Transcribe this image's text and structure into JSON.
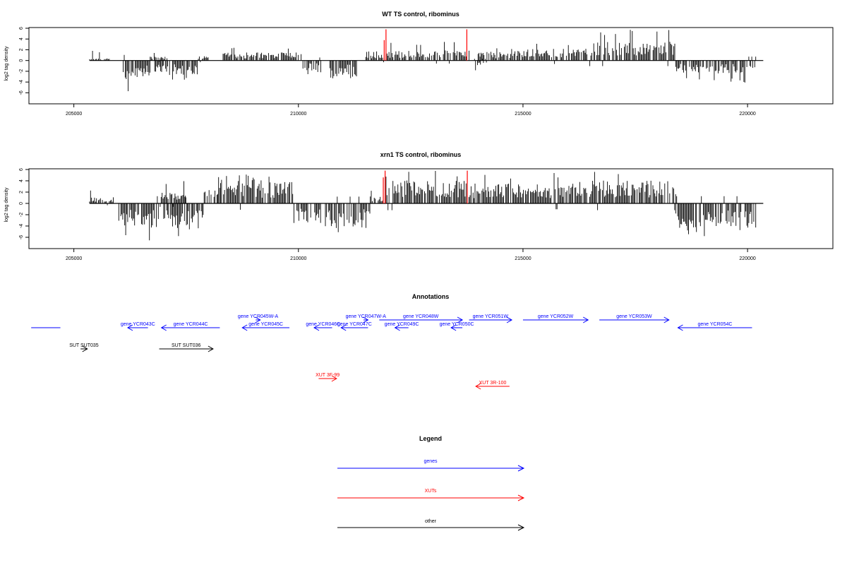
{
  "colors": {
    "black": "#000000",
    "blue": "#0000ff",
    "red": "#ff0000"
  },
  "chart_data": [
    {
      "type": "bar",
      "title": "WT TS control, ribominus",
      "ylabel": "log2 tag density",
      "xlim": [
        204000,
        221900
      ],
      "ylim": [
        -7,
        6
      ],
      "xticks": [
        205000,
        210000,
        215000,
        220000
      ],
      "yticks": [
        -6,
        -4,
        -2,
        0,
        2,
        4,
        6
      ],
      "x_range": [
        205350,
        220350
      ],
      "grid": false,
      "highlight_bars": [
        {
          "x": 211950,
          "y": 5.8,
          "color": "#ff0000"
        },
        {
          "x": 211910,
          "y": 3.8,
          "color": "#ff0000"
        },
        {
          "x": 213750,
          "y": 5.8,
          "color": "#ff0000"
        }
      ],
      "segments": [
        {
          "x": [
            205350,
            205800
          ],
          "level": 0.3,
          "max": 2.0
        },
        {
          "x": [
            206100,
            206700
          ],
          "level": -2.6,
          "max": -6.2
        },
        {
          "x": [
            206700,
            207100
          ],
          "level": 0.6,
          "max": 1.6
        },
        {
          "x": [
            206800,
            207750
          ],
          "level": -2.0,
          "max": -3.8
        },
        {
          "x": [
            207750,
            208000
          ],
          "level": 0.8,
          "max": 1.5
        },
        {
          "x": [
            208300,
            210100
          ],
          "level": 1.1,
          "max": 2.8
        },
        {
          "x": [
            210100,
            210500
          ],
          "level": -1.4,
          "max": -2.6
        },
        {
          "x": [
            210700,
            211300
          ],
          "level": -2.2,
          "max": -3.6
        },
        {
          "x": [
            211500,
            211900
          ],
          "level": 0.8,
          "max": 1.8
        },
        {
          "x": [
            211950,
            213800
          ],
          "level": 1.4,
          "max": 3.8
        },
        {
          "x": [
            213900,
            214200
          ],
          "level": -0.8,
          "max": -2.0
        },
        {
          "x": [
            214000,
            214800
          ],
          "level": 1.2,
          "max": 2.4
        },
        {
          "x": [
            214800,
            216400
          ],
          "level": 1.6,
          "max": 3.8
        },
        {
          "x": [
            216400,
            218400
          ],
          "level": 2.6,
          "max": 5.8
        },
        {
          "x": [
            218400,
            220200
          ],
          "level": -1.8,
          "max": -4.2
        }
      ]
    },
    {
      "type": "bar",
      "title": "xrn1 TS control, ribominus",
      "ylabel": "log2 tag density",
      "xlim": [
        204000,
        221900
      ],
      "ylim": [
        -7,
        6
      ],
      "xticks": [
        205000,
        210000,
        215000,
        220000
      ],
      "yticks": [
        -6,
        -4,
        -2,
        0,
        2,
        4,
        6
      ],
      "x_range": [
        205350,
        220350
      ],
      "grid": false,
      "highlight_bars": [
        {
          "x": 211930,
          "y": 5.8,
          "color": "#ff0000"
        },
        {
          "x": 211890,
          "y": 4.6,
          "color": "#ff0000"
        },
        {
          "x": 213760,
          "y": 5.8,
          "color": "#ff0000"
        }
      ],
      "segments": [
        {
          "x": [
            205350,
            205900
          ],
          "level": 0.8,
          "max": 2.8
        },
        {
          "x": [
            206000,
            206900
          ],
          "level": -3.2,
          "max": -7.0
        },
        {
          "x": [
            206900,
            207500
          ],
          "level": 1.5,
          "max": 4.0
        },
        {
          "x": [
            207000,
            207900
          ],
          "level": -3.4,
          "max": -6.2
        },
        {
          "x": [
            207900,
            208200
          ],
          "level": 1.8,
          "max": 4.5
        },
        {
          "x": [
            208200,
            209900
          ],
          "level": 2.8,
          "max": 5.2
        },
        {
          "x": [
            209900,
            210500
          ],
          "level": -2.6,
          "max": -5.0
        },
        {
          "x": [
            210600,
            211600
          ],
          "level": -3.0,
          "max": -5.2
        },
        {
          "x": [
            211600,
            211900
          ],
          "level": 1.0,
          "max": 2.4
        },
        {
          "x": [
            211950,
            213800
          ],
          "level": 3.0,
          "max": 5.8
        },
        {
          "x": [
            213800,
            216000
          ],
          "level": 2.6,
          "max": 5.8
        },
        {
          "x": [
            216000,
            218400
          ],
          "level": 3.0,
          "max": 5.8
        },
        {
          "x": [
            218400,
            220200
          ],
          "level": -3.2,
          "max": -6.0
        }
      ]
    }
  ],
  "annotations": {
    "title": "Annotations",
    "features": [
      {
        "label": "",
        "color": "#0000ff",
        "dir": "none",
        "x": [
          204050,
          204700
        ],
        "row": 3
      },
      {
        "label": "gene YCR043C",
        "color": "#0000ff",
        "dir": "left",
        "x": [
          206200,
          206650
        ],
        "row": 3
      },
      {
        "label": "gene YCR044C",
        "color": "#0000ff",
        "dir": "left",
        "x": [
          206950,
          208250
        ],
        "row": 3
      },
      {
        "label": "gene YCR045W-A",
        "color": "#0000ff",
        "dir": "right",
        "x": [
          209050,
          209150
        ],
        "row": 1
      },
      {
        "label": "gene YCR045C",
        "color": "#0000ff",
        "dir": "left",
        "x": [
          208750,
          209800
        ],
        "row": 3
      },
      {
        "label": "gene YCR046C",
        "color": "#0000ff",
        "dir": "left",
        "x": [
          210350,
          210750
        ],
        "row": 3
      },
      {
        "label": "gene YCR047W-A",
        "color": "#0000ff",
        "dir": "right",
        "x": [
          211450,
          211550
        ],
        "row": 1
      },
      {
        "label": "gene YCR047C",
        "color": "#0000ff",
        "dir": "left",
        "x": [
          210950,
          211550
        ],
        "row": 3
      },
      {
        "label": "gene YCR048W",
        "color": "#0000ff",
        "dir": "right",
        "x": [
          211800,
          213650
        ],
        "row": 2
      },
      {
        "label": "gene YCR049C",
        "color": "#0000ff",
        "dir": "left",
        "x": [
          212150,
          212450
        ],
        "row": 3
      },
      {
        "label": "gene YCR050C",
        "color": "#0000ff",
        "dir": "left",
        "x": [
          213400,
          213650
        ],
        "row": 3
      },
      {
        "label": "gene YCR051W",
        "color": "#0000ff",
        "dir": "right",
        "x": [
          213800,
          214750
        ],
        "row": 2
      },
      {
        "label": "gene YCR052W",
        "color": "#0000ff",
        "dir": "right",
        "x": [
          215000,
          216450
        ],
        "row": 2
      },
      {
        "label": "gene YCR053W",
        "color": "#0000ff",
        "dir": "right",
        "x": [
          216700,
          218250
        ],
        "row": 2
      },
      {
        "label": "gene YCR054C",
        "color": "#0000ff",
        "dir": "left",
        "x": [
          218450,
          220100
        ],
        "row": 3
      },
      {
        "label": "SUT SUT035",
        "color": "#000000",
        "dir": "right",
        "x": [
          205150,
          205300
        ],
        "row": 4
      },
      {
        "label": "SUT SUT036",
        "color": "#000000",
        "dir": "right",
        "x": [
          206900,
          208100
        ],
        "row": 4
      },
      {
        "label": "XUT 3F-99",
        "color": "#ff0000",
        "dir": "right",
        "x": [
          210450,
          210850
        ],
        "row": 5
      },
      {
        "label": "XUT 3R-100",
        "color": "#ff0000",
        "dir": "left",
        "x": [
          213950,
          214700
        ],
        "row": 6
      }
    ]
  },
  "legend": {
    "title": "Legend",
    "items": [
      {
        "label": "genes",
        "color": "#0000ff"
      },
      {
        "label": "XUTs",
        "color": "#ff0000"
      },
      {
        "label": "other",
        "color": "#000000"
      }
    ]
  }
}
